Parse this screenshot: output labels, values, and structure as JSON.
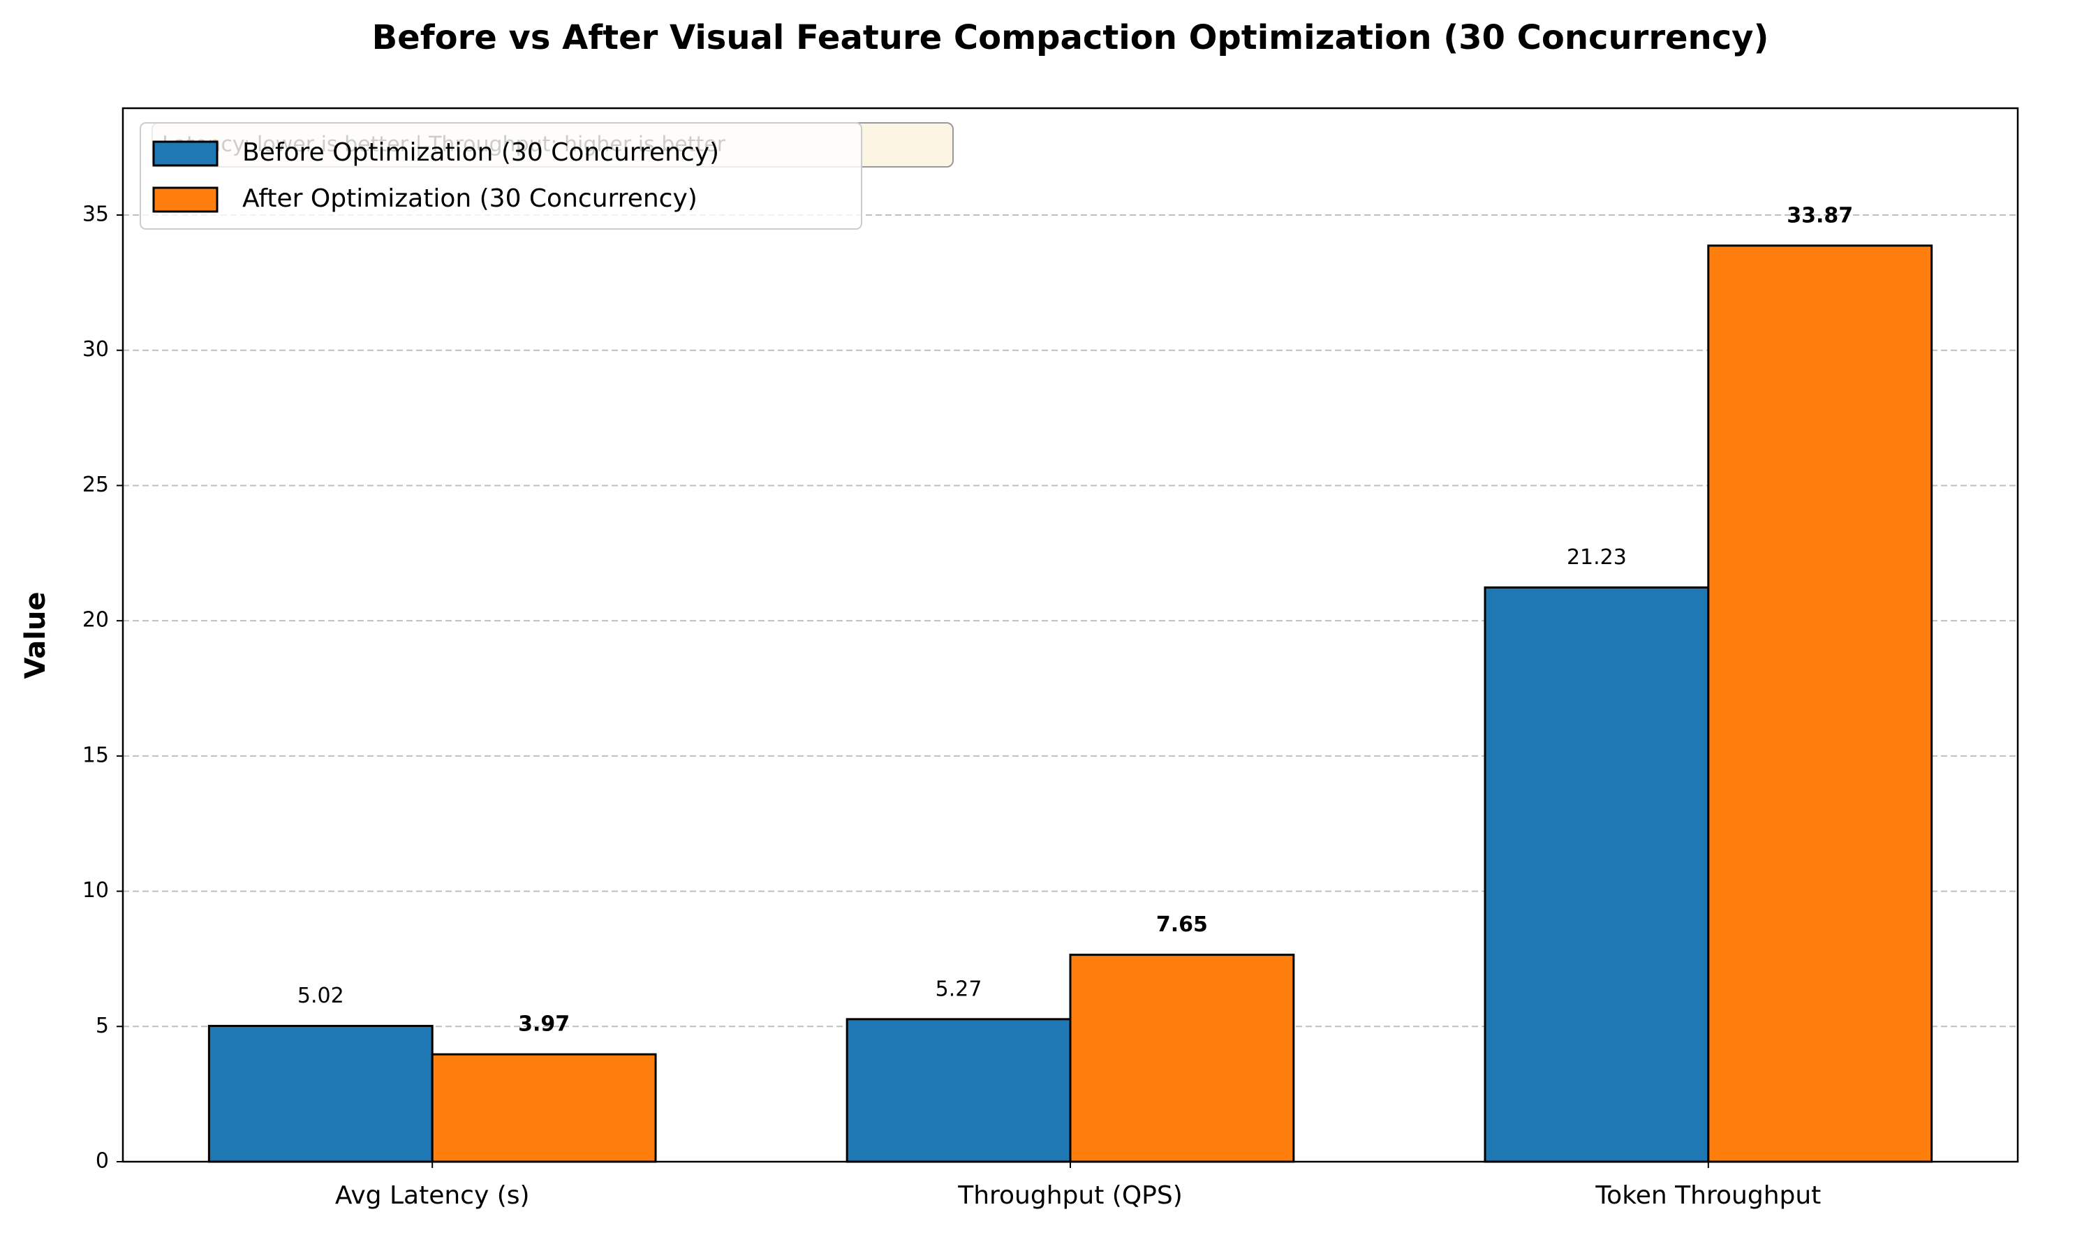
{
  "chart_data": {
    "type": "bar",
    "title": "Before vs After Visual Feature Compaction Optimization (30 Concurrency)",
    "ylabel": "Value",
    "annotation": "Latency: lower is better | Throughput: higher is better",
    "categories": [
      "Avg Latency (s)",
      "Throughput (QPS)",
      "Token Throughput"
    ],
    "series": [
      {
        "name": "Before Optimization (30 Concurrency)",
        "color": "#1f77b4",
        "values": [
          5.02,
          5.27,
          21.23
        ]
      },
      {
        "name": "After Optimization (30 Concurrency)",
        "color": "#ff7f0e",
        "values": [
          3.97,
          7.65,
          33.87
        ]
      }
    ],
    "ylim": [
      0,
      38.95
    ],
    "yticks": [
      0,
      5,
      10,
      15,
      20,
      25,
      30,
      35
    ],
    "grid": true,
    "legend": "upper left"
  }
}
